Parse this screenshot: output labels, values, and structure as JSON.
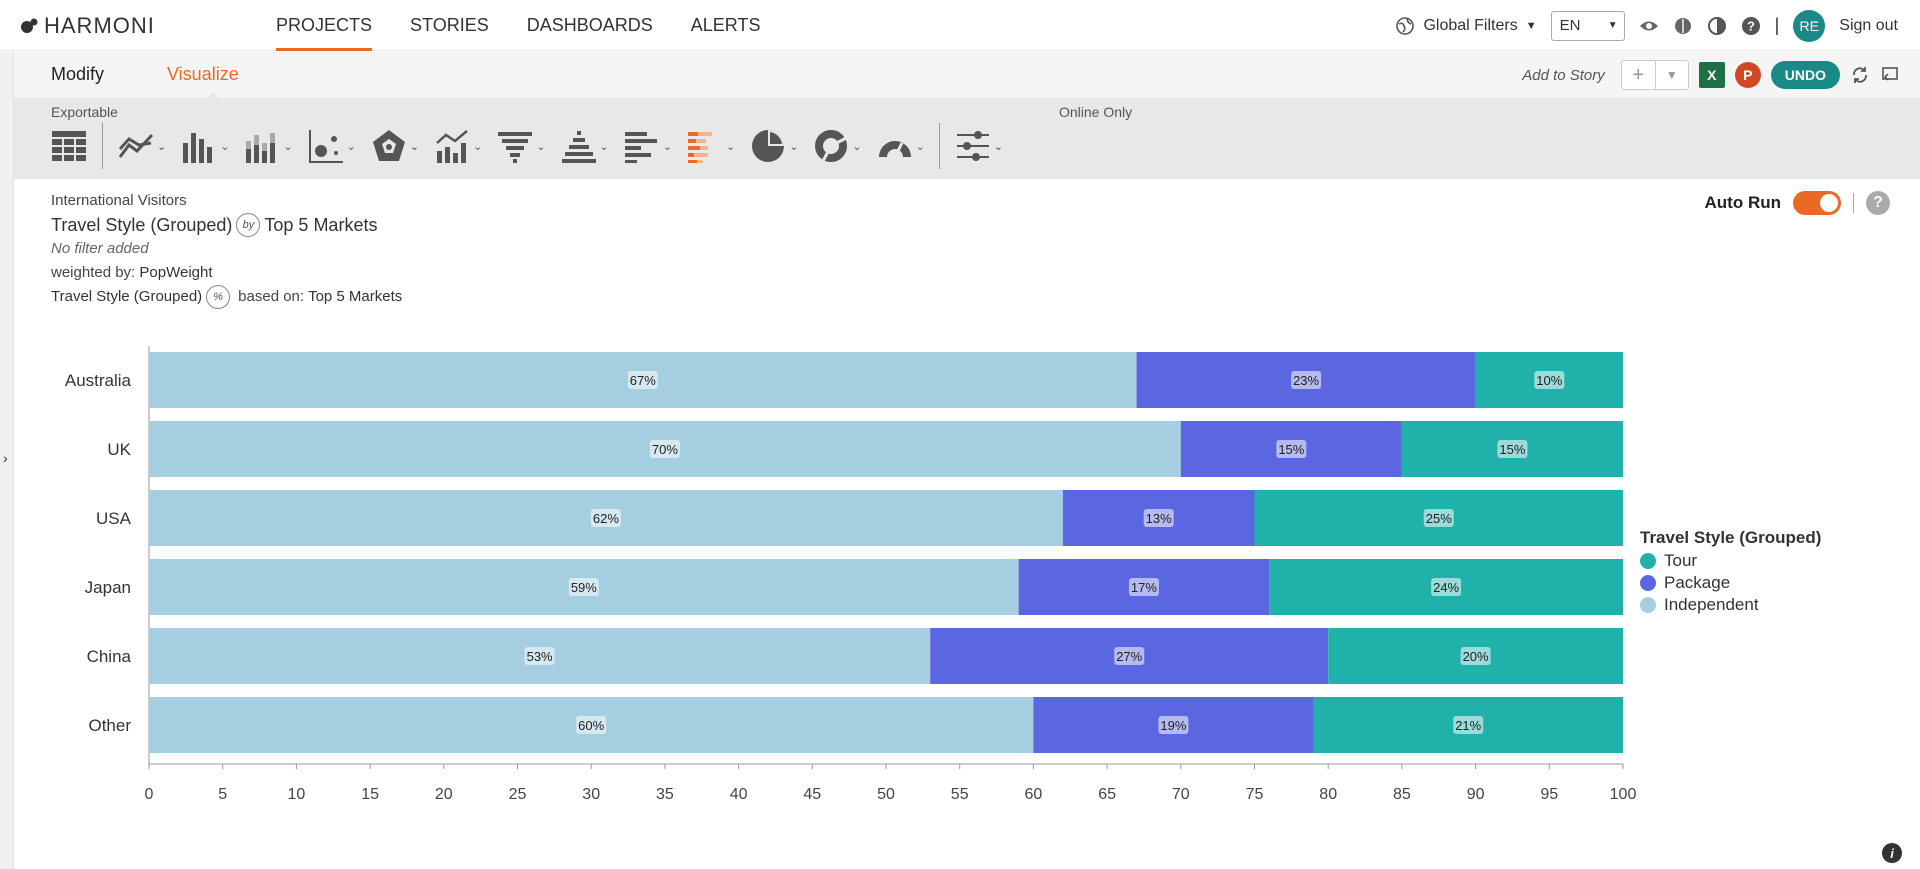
{
  "app": {
    "name": "HARMONI"
  },
  "nav": {
    "items": [
      {
        "label": "PROJECTS",
        "active": true
      },
      {
        "label": "STORIES"
      },
      {
        "label": "DASHBOARDS"
      },
      {
        "label": "ALERTS"
      }
    ]
  },
  "topright": {
    "global_filters": "Global Filters",
    "language": "EN",
    "avatar": "RE",
    "sign_out": "Sign out"
  },
  "subbar": {
    "modify": "Modify",
    "visualize": "Visualize",
    "add_to_story": "Add to Story",
    "undo": "UNDO",
    "excel": "X",
    "ppt": "P"
  },
  "toolbar": {
    "exportable": "Exportable",
    "online_only": "Online Only",
    "icons": [
      "table-icon",
      "line-chart-icon",
      "bar-chart-icon",
      "stacked-bar-chart-icon",
      "scatter-chart-icon",
      "radar-chart-icon",
      "combo-chart-icon",
      "funnel-chart-icon",
      "pyramid-chart-icon",
      "horizontal-bar-chart-icon",
      "stacked-horizontal-bar-chart-icon",
      "pie-chart-icon",
      "donut-chart-icon",
      "gauge-chart-icon",
      "filter-sliders-icon"
    ]
  },
  "meta": {
    "dataset": "International Visitors",
    "title_left": "Travel Style (Grouped)",
    "by": "by",
    "title_right": "Top 5 Markets",
    "no_filter": "No filter added",
    "weighted_label": "weighted by:",
    "weighted_value": "PopWeight",
    "pct_left": "Travel Style (Grouped)",
    "pct": "%",
    "based_label": "based on:",
    "based_value": "Top 5 Markets"
  },
  "autorun": {
    "label": "Auto Run",
    "on": true
  },
  "colors": {
    "accent": "#e96a23",
    "teal": "#1a8a86",
    "tour": "#20b2aa",
    "package": "#5b67e0",
    "independent": "#a5cee1"
  },
  "chart_data": {
    "type": "bar",
    "orientation": "horizontal",
    "stacked": true,
    "categories": [
      "Australia",
      "UK",
      "USA",
      "Japan",
      "China",
      "Other"
    ],
    "series": [
      {
        "name": "Independent",
        "values": [
          67,
          70,
          62,
          59,
          53,
          60
        ],
        "labels": [
          "67%",
          "70%",
          "62%",
          "59%",
          "53%",
          "60%"
        ]
      },
      {
        "name": "Package",
        "values": [
          23,
          15,
          13,
          17,
          27,
          19
        ],
        "labels": [
          "23%",
          "15%",
          "13%",
          "17%",
          "27%",
          "19%"
        ]
      },
      {
        "name": "Tour",
        "values": [
          10,
          15,
          25,
          24,
          20,
          21
        ],
        "labels": [
          "10%",
          "15%",
          "25%",
          "24%",
          "20%",
          "21%"
        ]
      }
    ],
    "xlim": [
      0,
      100
    ],
    "xticks": [
      0,
      5,
      10,
      15,
      20,
      25,
      30,
      35,
      40,
      45,
      50,
      55,
      60,
      65,
      70,
      75,
      80,
      85,
      90,
      95,
      100
    ],
    "legend_title": "Travel Style (Grouped)",
    "legend_order": [
      "Tour",
      "Package",
      "Independent"
    ],
    "legend_position": "right",
    "grid": false
  }
}
